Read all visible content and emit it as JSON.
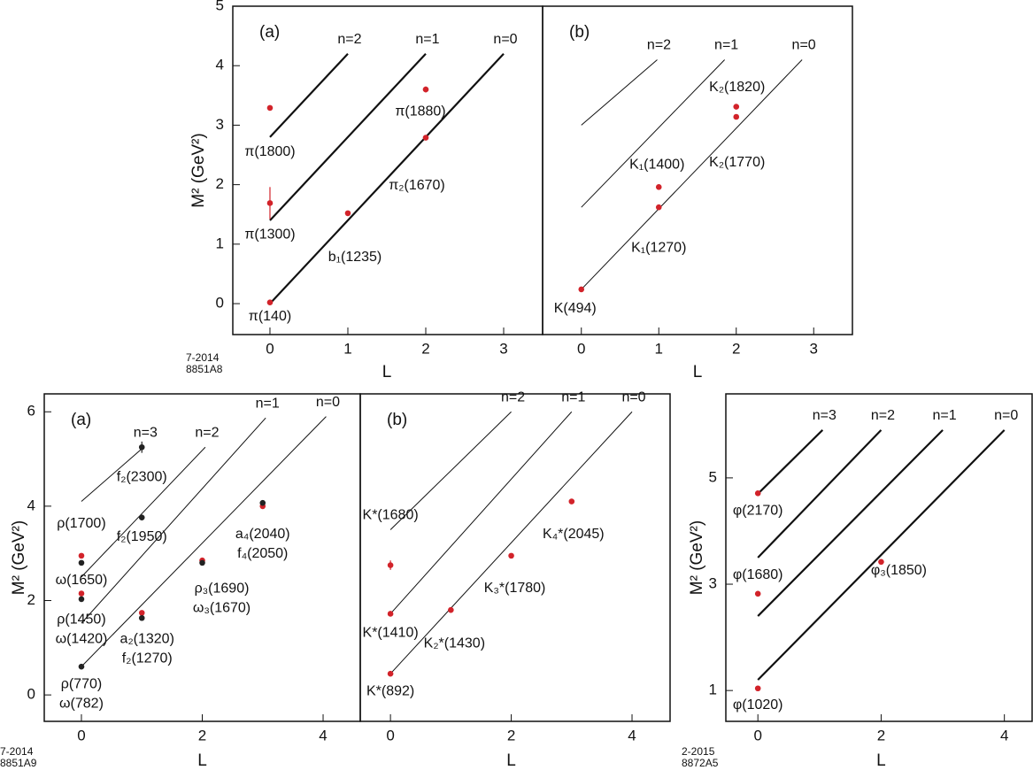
{
  "chart_data": [
    {
      "type": "scatter",
      "panel_label": "(a)",
      "xlabel": "L",
      "ylabel": "M² (GeV²)",
      "stamp": [
        "7-2014",
        "8851A8"
      ],
      "xlim": [
        -0.477,
        3.5
      ],
      "ylim": [
        -0.52,
        5.0
      ],
      "xticks": [
        0,
        1,
        2,
        3
      ],
      "yticks": [
        0,
        1,
        2,
        3,
        4,
        5
      ],
      "lines": [
        {
          "name": "n=2",
          "x": [
            0,
            1
          ],
          "y": [
            2.8,
            4.2
          ]
        },
        {
          "name": "n=1",
          "x": [
            0,
            2
          ],
          "y": [
            1.4,
            4.2
          ]
        },
        {
          "name": "n=0",
          "x": [
            0,
            3
          ],
          "y": [
            0,
            4.2
          ]
        }
      ],
      "points": [
        {
          "x": 0,
          "y": 0.02,
          "color": "#d2232a",
          "labels": [
            "π(140)"
          ]
        },
        {
          "x": 0,
          "y": 1.69,
          "err": 0.27,
          "color": "#d2232a",
          "labels": [
            "π(1300)"
          ]
        },
        {
          "x": 0,
          "y": 3.29,
          "color": "#d2232a",
          "labels": [
            "π(1800)"
          ]
        },
        {
          "x": 1,
          "y": 1.52,
          "color": "#d2232a",
          "labels": [
            "b₁(1235)"
          ]
        },
        {
          "x": 2,
          "y": 2.79,
          "color": "#d2232a",
          "labels": [
            "π₂(1670)"
          ]
        },
        {
          "x": 2,
          "y": 3.6,
          "err": 0.05,
          "color": "#d2232a",
          "labels": [
            "π(1880)"
          ]
        }
      ]
    },
    {
      "type": "scatter",
      "panel_label": "(b)",
      "xlabel": "L",
      "xlim": [
        -0.5,
        3.5
      ],
      "ylim": [
        -0.52,
        5.0
      ],
      "xticks": [
        0,
        1,
        2,
        3
      ],
      "lines": [
        {
          "name": "n=2",
          "x": [
            0,
            0.98
          ],
          "y": [
            3.0,
            4.1
          ]
        },
        {
          "name": "n=1",
          "x": [
            0,
            1.85
          ],
          "y": [
            1.62,
            4.1
          ]
        },
        {
          "name": "n=0",
          "x": [
            0,
            2.85
          ],
          "y": [
            0.24,
            4.1
          ]
        }
      ],
      "points": [
        {
          "x": 0,
          "y": 0.24,
          "color": "#d2232a",
          "labels": [
            "K(494)"
          ]
        },
        {
          "x": 1,
          "y": 1.62,
          "color": "#d2232a",
          "labels": [
            "K₁(1270)"
          ]
        },
        {
          "x": 1,
          "y": 1.96,
          "color": "#d2232a",
          "labels": [
            "K₁(1400)"
          ]
        },
        {
          "x": 2,
          "y": 3.14,
          "color": "#d2232a",
          "labels": [
            "K₂(1770)"
          ]
        },
        {
          "x": 2,
          "y": 3.31,
          "color": "#d2232a",
          "labels": [
            "K₂(1820)"
          ]
        }
      ]
    },
    {
      "type": "scatter",
      "panel_label": "(a)",
      "xlabel": "L",
      "ylabel": "M² (GeV²)",
      "stamp": [
        "7-2014",
        "8851A9"
      ],
      "xlim": [
        -0.615,
        4.615
      ],
      "ylim": [
        -0.56,
        6.38
      ],
      "xticks": [
        0,
        2,
        4
      ],
      "yticks": [
        0,
        2,
        4,
        6
      ],
      "lines": [
        {
          "name": "n=3",
          "x": [
            0,
            1.03
          ],
          "y": [
            4.1,
            5.25
          ]
        },
        {
          "name": "n=2",
          "x": [
            0,
            2.05
          ],
          "y": [
            2.5,
            5.25
          ]
        },
        {
          "name": "n=1",
          "x": [
            0,
            3.05
          ],
          "y": [
            1.52,
            5.87
          ]
        },
        {
          "name": "n=0",
          "x": [
            0,
            4.05
          ],
          "y": [
            0.6,
            5.9
          ]
        }
      ],
      "points": [
        {
          "x": 0,
          "y": 0.6,
          "color": "#222222",
          "labels": [
            "ρ(770)",
            "ω(782)"
          ]
        },
        {
          "x": 0,
          "y": 2.15,
          "color": "#d2232a",
          "labels": [
            "ρ(1450)",
            "ω(1420)"
          ]
        },
        {
          "x": 0,
          "y": 2.03,
          "color": "#222222"
        },
        {
          "x": 0,
          "y": 2.95,
          "color": "#d2232a",
          "labels": [
            "ρ(1700)"
          ]
        },
        {
          "x": 0,
          "y": 2.8,
          "color": "#222222",
          "labels": [
            "ω(1650)"
          ]
        },
        {
          "x": 1,
          "y": 1.74,
          "color": "#d2232a"
        },
        {
          "x": 1,
          "y": 1.63,
          "color": "#222222",
          "labels": [
            "a₂(1320)",
            "f₂(1270)"
          ]
        },
        {
          "x": 2,
          "y": 2.85,
          "color": "#d2232a",
          "labels": [
            "ρ₃(1690)",
            "ω₃(1670)"
          ]
        },
        {
          "x": 2,
          "y": 2.8,
          "color": "#222222"
        },
        {
          "x": 3,
          "y": 4.0,
          "color": "#d2232a",
          "labels": [
            "a₄(2040)",
            "f₄(2050)"
          ]
        },
        {
          "x": 3,
          "y": 4.07,
          "color": "#222222"
        },
        {
          "x": 1,
          "y": 3.76,
          "color": "#222222",
          "labels": [
            "f₂(1950)"
          ]
        },
        {
          "x": 1,
          "y": 5.25,
          "err": 0.12,
          "color": "#222222",
          "labels": [
            "f₂(2300)"
          ]
        }
      ]
    },
    {
      "type": "scatter",
      "panel_label": "(b)",
      "xlabel": "L",
      "xlim": [
        -0.5,
        4.63
      ],
      "ylim": [
        -0.56,
        6.38
      ],
      "xticks": [
        0,
        2,
        4
      ],
      "lines": [
        {
          "name": "n=2",
          "x": [
            0,
            2.0
          ],
          "y": [
            3.5,
            6.0
          ]
        },
        {
          "name": "n=1",
          "x": [
            0,
            3.0
          ],
          "y": [
            1.72,
            6.0
          ]
        },
        {
          "name": "n=0",
          "x": [
            0,
            4.0
          ],
          "y": [
            0.45,
            6.0
          ]
        }
      ],
      "points": [
        {
          "x": 0,
          "y": 0.45,
          "color": "#d2232a",
          "labels": [
            "K*(892)"
          ]
        },
        {
          "x": 0,
          "y": 1.72,
          "color": "#d2232a",
          "labels": [
            "K*(1410)"
          ]
        },
        {
          "x": 0,
          "y": 2.75,
          "err": 0.1,
          "color": "#d2232a",
          "labels": [
            "K*(1680)"
          ]
        },
        {
          "x": 1,
          "y": 1.8,
          "color": "#d2232a",
          "labels": [
            "K₂*(1430)"
          ]
        },
        {
          "x": 2,
          "y": 2.95,
          "color": "#d2232a",
          "labels": [
            "K₃*(1780)"
          ]
        },
        {
          "x": 3,
          "y": 4.1,
          "color": "#d2232a",
          "labels": [
            "K₄*(2045)"
          ]
        }
      ]
    },
    {
      "type": "scatter",
      "xlabel": "L",
      "ylabel": "M² (GeV²)",
      "stamp": [
        "2-2015",
        "8872A5"
      ],
      "xlim": [
        -0.52,
        4.45
      ],
      "ylim": [
        0.42,
        6.58
      ],
      "xticks": [
        0,
        2,
        4
      ],
      "yticks": [
        1,
        3,
        5
      ],
      "lines": [
        {
          "name": "n=3",
          "x": [
            0,
            1.05
          ],
          "y": [
            4.7,
            5.9
          ]
        },
        {
          "name": "n=2",
          "x": [
            0,
            2.0
          ],
          "y": [
            3.5,
            5.9
          ]
        },
        {
          "name": "n=1",
          "x": [
            0,
            3.0
          ],
          "y": [
            2.4,
            5.9
          ]
        },
        {
          "name": "n=0",
          "x": [
            0,
            4.0
          ],
          "y": [
            1.2,
            5.9
          ]
        }
      ],
      "points": [
        {
          "x": 0,
          "y": 1.04,
          "color": "#d2232a",
          "labels": [
            "φ(1020)"
          ]
        },
        {
          "x": 0,
          "y": 2.82,
          "color": "#d2232a",
          "labels": [
            "φ(1680)"
          ]
        },
        {
          "x": 0,
          "y": 4.71,
          "color": "#d2232a",
          "labels": [
            "φ(2170)"
          ]
        },
        {
          "x": 2,
          "y": 3.42,
          "color": "#d2232a",
          "labels": [
            "φ₃(1850)"
          ]
        }
      ]
    }
  ]
}
